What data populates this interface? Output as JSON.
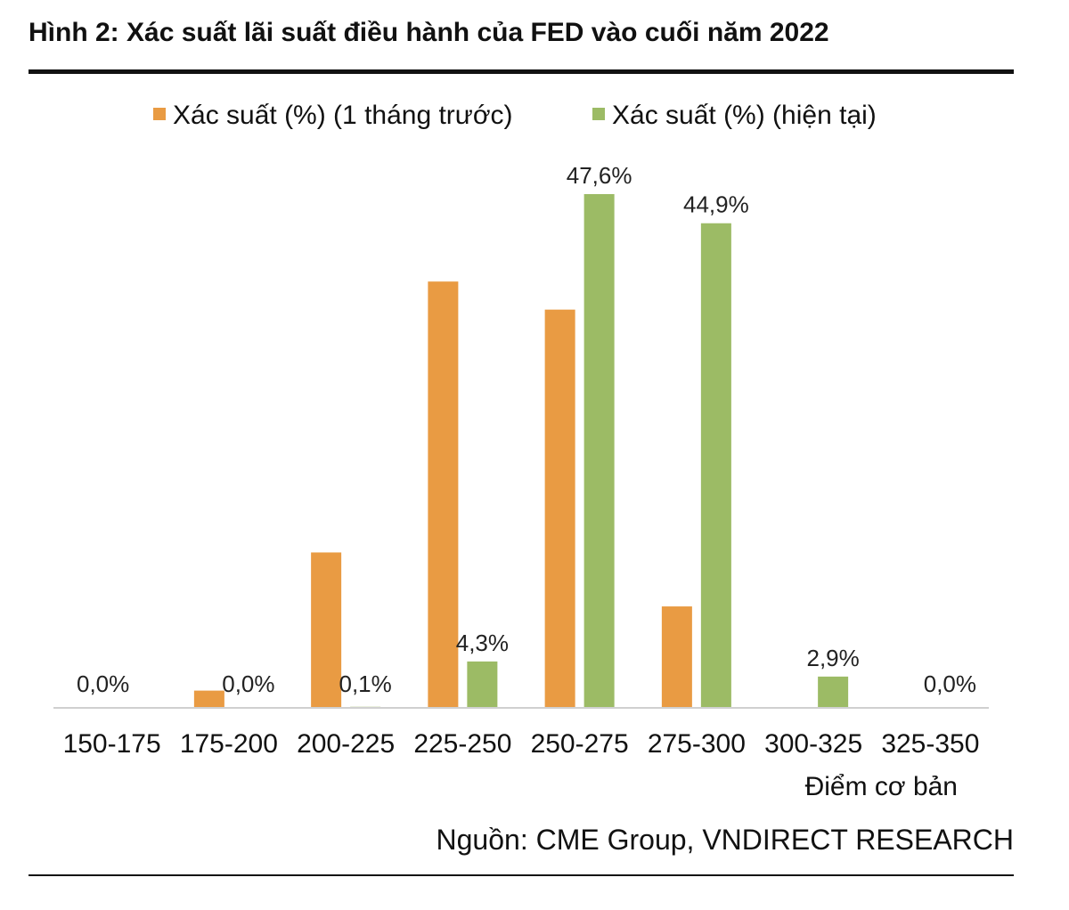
{
  "figure": {
    "title": "Hình 2: Xác suất lãi suất điều hành của FED vào cuối năm 2022",
    "source": "Nguồn: CME Group, VNDIRECT RESEARCH"
  },
  "chart_data": {
    "type": "bar",
    "title": "Hình 2: Xác suất lãi suất điều hành của FED vào cuối năm 2022",
    "xlabel": "Điểm cơ bản",
    "ylabel": "",
    "ylim": [
      0,
      50
    ],
    "grid": false,
    "legend_position": "top-center",
    "categories": [
      "150-175",
      "175-200",
      "200-225",
      "225-250",
      "250-275",
      "275-300",
      "300-325",
      "325-350"
    ],
    "series": [
      {
        "name": "Xác suất (%) (1 tháng trước)",
        "color": "#E99B43",
        "values": [
          0.0,
          1.6,
          14.4,
          39.5,
          36.9,
          9.4,
          0.0,
          0.0
        ],
        "labels": [
          "0,0%",
          null,
          null,
          null,
          null,
          null,
          null,
          null
        ]
      },
      {
        "name": "Xác suất (%) (hiện tại)",
        "color": "#9CBB65",
        "values": [
          0.0,
          0.0,
          0.1,
          4.3,
          47.6,
          44.9,
          2.9,
          0.0
        ],
        "labels": [
          null,
          "0,0%",
          "0,1%",
          "4,3%",
          "47,6%",
          "44,9%",
          "2,9%",
          "0,0%"
        ]
      }
    ]
  }
}
